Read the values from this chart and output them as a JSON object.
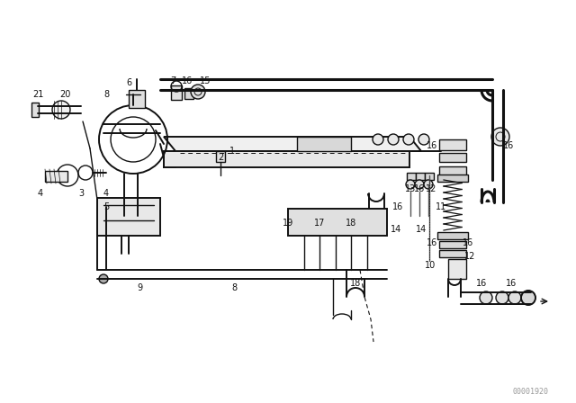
{
  "bg_color": "#ffffff",
  "line_color": "#111111",
  "fig_width": 6.4,
  "fig_height": 4.48,
  "dpi": 100,
  "watermark": "00001920",
  "watermark_color": "#999999",
  "watermark_fs": 6
}
